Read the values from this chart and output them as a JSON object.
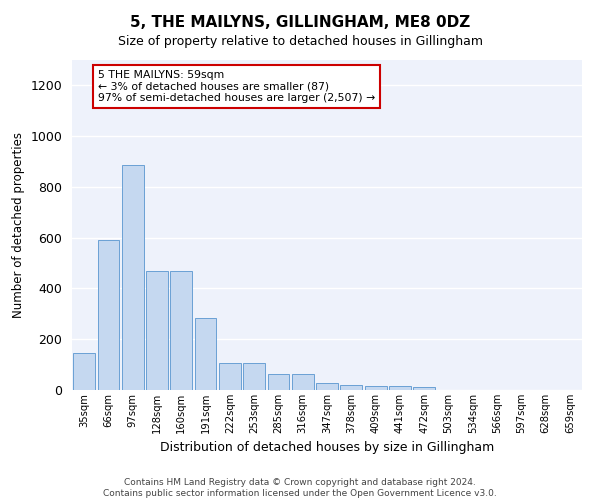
{
  "title": "5, THE MAILYNS, GILLINGHAM, ME8 0DZ",
  "subtitle": "Size of property relative to detached houses in Gillingham",
  "xlabel": "Distribution of detached houses by size in Gillingham",
  "ylabel": "Number of detached properties",
  "bar_color": "#c5d8f0",
  "bar_edge_color": "#6aa0d4",
  "background_color": "#eef2fb",
  "categories": [
    "35sqm",
    "66sqm",
    "97sqm",
    "128sqm",
    "160sqm",
    "191sqm",
    "222sqm",
    "253sqm",
    "285sqm",
    "316sqm",
    "347sqm",
    "378sqm",
    "409sqm",
    "441sqm",
    "472sqm",
    "503sqm",
    "534sqm",
    "566sqm",
    "597sqm",
    "628sqm",
    "659sqm"
  ],
  "values": [
    145,
    590,
    885,
    470,
    470,
    285,
    105,
    105,
    62,
    62,
    28,
    20,
    14,
    14,
    10,
    0,
    0,
    0,
    0,
    0,
    0
  ],
  "ylim": [
    0,
    1300
  ],
  "yticks": [
    0,
    200,
    400,
    600,
    800,
    1000,
    1200
  ],
  "annotation_text": "5 THE MAILYNS: 59sqm\n← 3% of detached houses are smaller (87)\n97% of semi-detached houses are larger (2,507) →",
  "annotation_box_color": "#ffffff",
  "annotation_box_edge_color": "#cc0000",
  "footer_line1": "Contains HM Land Registry data © Crown copyright and database right 2024.",
  "footer_line2": "Contains public sector information licensed under the Open Government Licence v3.0."
}
